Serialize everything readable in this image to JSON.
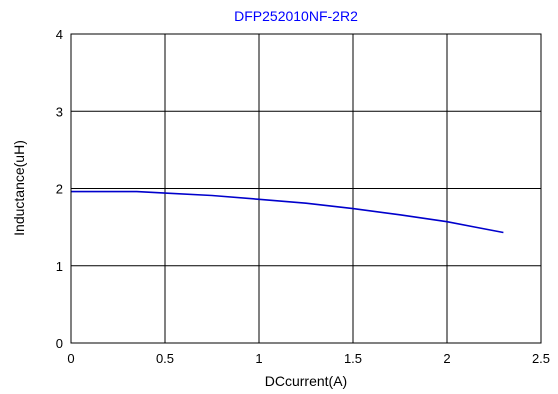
{
  "chart_data": {
    "type": "line",
    "title": "DFP252010NF-2R2",
    "xlabel": "DCcurrent(A)",
    "ylabel": "Inductance(uH)",
    "xlim": [
      0,
      2.5
    ],
    "ylim": [
      0,
      4
    ],
    "xticks": [
      0,
      0.5,
      1,
      1.5,
      2,
      2.5
    ],
    "yticks": [
      0,
      1,
      2,
      3,
      4
    ],
    "xtick_labels": [
      "0",
      "0.5",
      "1",
      "1.5",
      "2",
      "2.5"
    ],
    "ytick_labels": [
      "0",
      "1",
      "2",
      "3",
      "4"
    ],
    "grid": true,
    "series_color": "#0000cc",
    "series": [
      {
        "x": [
          0,
          0.2,
          0.35,
          0.5,
          0.75,
          1.0,
          1.25,
          1.5,
          1.75,
          2.0,
          2.15,
          2.3
        ],
        "y": [
          1.96,
          1.96,
          1.96,
          1.94,
          1.91,
          1.86,
          1.81,
          1.74,
          1.66,
          1.57,
          1.5,
          1.43
        ]
      }
    ]
  }
}
